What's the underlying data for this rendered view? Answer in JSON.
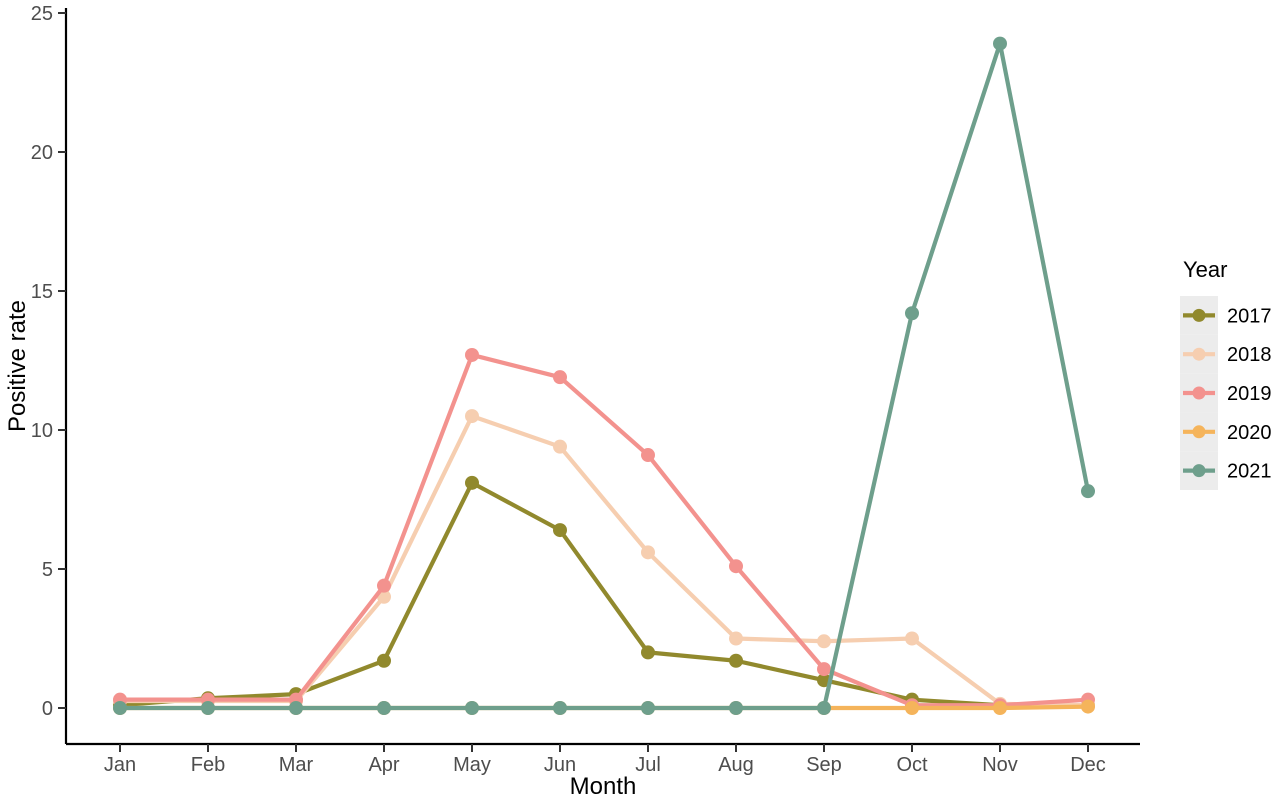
{
  "figure": {
    "background": "#ffffff",
    "axis_line_color": "#000000",
    "tick_label_color": "#4d4d4d",
    "axis_title_color": "#000000",
    "legend_key_background": "#ececec"
  },
  "chart_data": {
    "type": "line",
    "title": "",
    "xlabel": "Month",
    "ylabel": "Positive rate",
    "legend_title": "Year",
    "legend_position": "right",
    "grid": false,
    "ylim": [
      0,
      25
    ],
    "yticks": [
      0,
      5,
      10,
      15,
      20,
      25
    ],
    "x": [
      "Jan",
      "Feb",
      "Mar",
      "Apr",
      "May",
      "Jun",
      "Jul",
      "Aug",
      "Sep",
      "Oct",
      "Nov",
      "Dec"
    ],
    "series": [
      {
        "name": "2017",
        "color": "#91892D",
        "values": [
          0.1,
          0.35,
          0.5,
          1.7,
          8.1,
          6.4,
          2.0,
          1.7,
          1.0,
          0.3,
          0.1,
          0.1
        ]
      },
      {
        "name": "2018",
        "color": "#F6CEB0",
        "values": [
          0.25,
          0.25,
          0.25,
          4.0,
          10.5,
          9.4,
          5.6,
          2.5,
          2.4,
          2.5,
          0.15,
          0.1
        ]
      },
      {
        "name": "2019",
        "color": "#F3928E",
        "values": [
          0.3,
          0.3,
          0.3,
          4.4,
          12.7,
          11.9,
          9.1,
          5.1,
          1.4,
          0.1,
          0.1,
          0.3
        ]
      },
      {
        "name": "2020",
        "color": "#F5B45B",
        "values": [
          0,
          0,
          0,
          0,
          0,
          0,
          0,
          0,
          0,
          0,
          0,
          0.05
        ]
      },
      {
        "name": "2021",
        "color": "#6E9F8C",
        "values": [
          0,
          0,
          0,
          0,
          0,
          0,
          0,
          0,
          0,
          14.2,
          23.9,
          7.8
        ]
      }
    ]
  }
}
